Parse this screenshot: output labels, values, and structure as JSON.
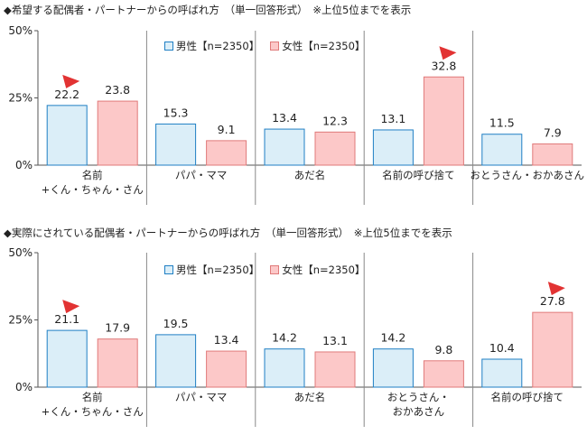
{
  "colors": {
    "male_fill": "#dbeef8",
    "male_stroke": "#1f7fc4",
    "female_fill": "#fcc8c8",
    "female_stroke": "#e07a7a",
    "marker": "#e23333",
    "axis": "#555555",
    "divider": "#888888"
  },
  "chart_data": [
    {
      "type": "bar",
      "title": "◆希望する配偶者・パートナーからの呼ばれ方　（単一回答形式）　※上位5位までを表示",
      "categories": [
        [
          "名前",
          "+くん・ちゃん・さん"
        ],
        [
          "パパ・ママ"
        ],
        [
          "あだ名"
        ],
        [
          "名前の呼び捨て"
        ],
        [
          "おとうさん・おかあさん"
        ]
      ],
      "series": [
        {
          "name": "男性【n=2350】",
          "values": [
            22.2,
            15.3,
            13.4,
            13.1,
            11.5
          ]
        },
        {
          "name": "女性【n=2350】",
          "values": [
            23.8,
            9.1,
            12.3,
            32.8,
            7.9
          ]
        }
      ],
      "highlights": [
        {
          "category_index": 0,
          "series_index": 0
        },
        {
          "category_index": 3,
          "series_index": 1
        }
      ],
      "ylim": [
        0,
        50
      ],
      "yticks": [
        "0%",
        "25%",
        "50%"
      ],
      "legend": "top-center",
      "grid": false
    },
    {
      "type": "bar",
      "title": "◆実際にされている配偶者・パートナーからの呼ばれ方　（単一回答形式）　※上位5位までを表示",
      "categories": [
        [
          "名前",
          "+くん・ちゃん・さん"
        ],
        [
          "パパ・ママ"
        ],
        [
          "あだ名"
        ],
        [
          "おとうさん・",
          "おかあさん"
        ],
        [
          "名前の呼び捨て"
        ]
      ],
      "series": [
        {
          "name": "男性【n=2350】",
          "values": [
            21.1,
            19.5,
            14.2,
            14.2,
            10.4
          ]
        },
        {
          "name": "女性【n=2350】",
          "values": [
            17.9,
            13.4,
            13.1,
            9.8,
            27.8
          ]
        }
      ],
      "highlights": [
        {
          "category_index": 0,
          "series_index": 0
        },
        {
          "category_index": 4,
          "series_index": 1
        }
      ],
      "ylim": [
        0,
        50
      ],
      "yticks": [
        "0%",
        "25%",
        "50%"
      ],
      "legend": "top-center",
      "grid": false
    }
  ]
}
